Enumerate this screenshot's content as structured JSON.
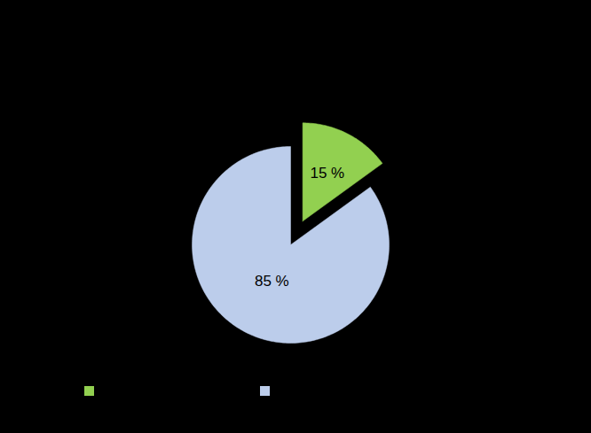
{
  "chart_data": {
    "type": "pie",
    "categories": [
      null,
      null
    ],
    "values": [
      15,
      85
    ],
    "value_labels": [
      "15 %",
      "85 %"
    ],
    "colors": [
      "#92d050",
      "#bccdeb"
    ],
    "data_labels": true,
    "legend": "bottom"
  }
}
